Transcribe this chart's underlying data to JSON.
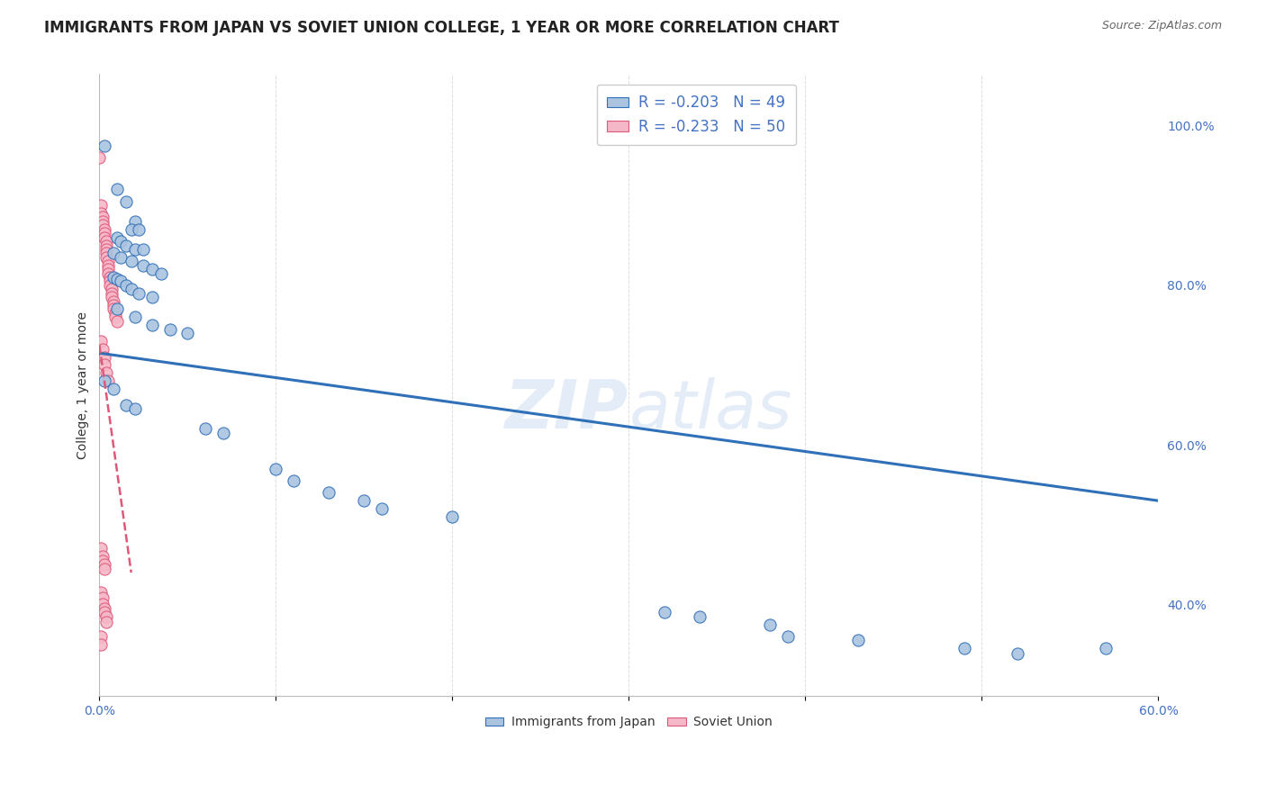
{
  "title": "IMMIGRANTS FROM JAPAN VS SOVIET UNION COLLEGE, 1 YEAR OR MORE CORRELATION CHART",
  "source": "Source: ZipAtlas.com",
  "ylabel": "College, 1 year or more",
  "yticks_right": [
    0.4,
    0.6,
    0.8,
    1.0
  ],
  "ytick_labels_right": [
    "40.0%",
    "60.0%",
    "80.0%",
    "100.0%"
  ],
  "watermark": "ZIPatlas",
  "japan_R": -0.203,
  "japan_N": 49,
  "soviet_R": -0.233,
  "soviet_N": 50,
  "japan_color": "#aac4e0",
  "japan_line_color": "#3070b8",
  "soviet_color": "#f5b8c8",
  "soviet_line_color": "#e05878",
  "japan_scatter": [
    [
      0.003,
      0.975
    ],
    [
      0.01,
      0.92
    ],
    [
      0.015,
      0.905
    ],
    [
      0.02,
      0.88
    ],
    [
      0.018,
      0.87
    ],
    [
      0.022,
      0.87
    ],
    [
      0.01,
      0.86
    ],
    [
      0.012,
      0.855
    ],
    [
      0.015,
      0.85
    ],
    [
      0.02,
      0.845
    ],
    [
      0.025,
      0.845
    ],
    [
      0.008,
      0.84
    ],
    [
      0.012,
      0.835
    ],
    [
      0.018,
      0.83
    ],
    [
      0.025,
      0.825
    ],
    [
      0.03,
      0.82
    ],
    [
      0.035,
      0.815
    ],
    [
      0.008,
      0.81
    ],
    [
      0.01,
      0.808
    ],
    [
      0.012,
      0.805
    ],
    [
      0.015,
      0.8
    ],
    [
      0.018,
      0.795
    ],
    [
      0.022,
      0.79
    ],
    [
      0.03,
      0.785
    ],
    [
      0.01,
      0.77
    ],
    [
      0.02,
      0.76
    ],
    [
      0.03,
      0.75
    ],
    [
      0.04,
      0.745
    ],
    [
      0.05,
      0.74
    ],
    [
      0.003,
      0.68
    ],
    [
      0.008,
      0.67
    ],
    [
      0.015,
      0.65
    ],
    [
      0.02,
      0.645
    ],
    [
      0.06,
      0.62
    ],
    [
      0.07,
      0.615
    ],
    [
      0.1,
      0.57
    ],
    [
      0.11,
      0.555
    ],
    [
      0.13,
      0.54
    ],
    [
      0.15,
      0.53
    ],
    [
      0.16,
      0.52
    ],
    [
      0.2,
      0.51
    ],
    [
      0.32,
      0.39
    ],
    [
      0.34,
      0.385
    ],
    [
      0.38,
      0.375
    ],
    [
      0.39,
      0.36
    ],
    [
      0.43,
      0.355
    ],
    [
      0.49,
      0.345
    ],
    [
      0.52,
      0.338
    ],
    [
      0.57,
      0.345
    ]
  ],
  "soviet_scatter": [
    [
      0.0,
      0.96
    ],
    [
      0.001,
      0.9
    ],
    [
      0.001,
      0.89
    ],
    [
      0.002,
      0.885
    ],
    [
      0.002,
      0.88
    ],
    [
      0.002,
      0.875
    ],
    [
      0.003,
      0.87
    ],
    [
      0.003,
      0.865
    ],
    [
      0.003,
      0.86
    ],
    [
      0.004,
      0.855
    ],
    [
      0.004,
      0.85
    ],
    [
      0.004,
      0.845
    ],
    [
      0.004,
      0.84
    ],
    [
      0.004,
      0.835
    ],
    [
      0.005,
      0.83
    ],
    [
      0.005,
      0.825
    ],
    [
      0.005,
      0.82
    ],
    [
      0.005,
      0.815
    ],
    [
      0.006,
      0.81
    ],
    [
      0.006,
      0.805
    ],
    [
      0.006,
      0.8
    ],
    [
      0.007,
      0.795
    ],
    [
      0.007,
      0.79
    ],
    [
      0.007,
      0.785
    ],
    [
      0.008,
      0.78
    ],
    [
      0.008,
      0.775
    ],
    [
      0.008,
      0.77
    ],
    [
      0.009,
      0.765
    ],
    [
      0.009,
      0.76
    ],
    [
      0.01,
      0.755
    ],
    [
      0.001,
      0.73
    ],
    [
      0.002,
      0.72
    ],
    [
      0.003,
      0.71
    ],
    [
      0.003,
      0.7
    ],
    [
      0.004,
      0.69
    ],
    [
      0.005,
      0.68
    ],
    [
      0.001,
      0.47
    ],
    [
      0.002,
      0.46
    ],
    [
      0.002,
      0.455
    ],
    [
      0.003,
      0.45
    ],
    [
      0.003,
      0.445
    ],
    [
      0.001,
      0.415
    ],
    [
      0.002,
      0.408
    ],
    [
      0.002,
      0.4
    ],
    [
      0.003,
      0.395
    ],
    [
      0.003,
      0.39
    ],
    [
      0.004,
      0.385
    ],
    [
      0.004,
      0.378
    ],
    [
      0.001,
      0.36
    ],
    [
      0.001,
      0.35
    ]
  ],
  "japan_trend_x": [
    0.0,
    0.6
  ],
  "japan_trend_y": [
    0.715,
    0.53
  ],
  "soviet_trend_x": [
    0.0,
    0.018
  ],
  "soviet_trend_y": [
    0.725,
    0.44
  ],
  "xlim": [
    0.0,
    0.6
  ],
  "ylim": [
    0.285,
    1.065
  ],
  "background_color": "#ffffff",
  "grid_color": "#dddddd",
  "title_fontsize": 12,
  "axis_fontsize": 10,
  "legend_fontsize": 12
}
